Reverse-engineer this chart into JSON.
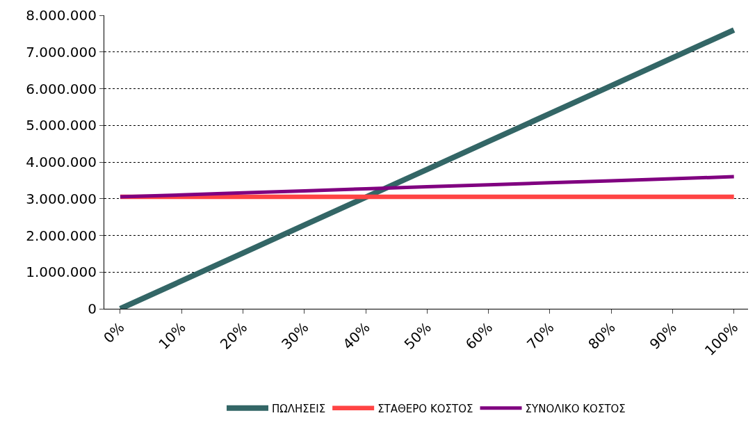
{
  "chart_data": {
    "type": "line",
    "categories": [
      "0%",
      "10%",
      "20%",
      "30%",
      "40%",
      "50%",
      "60%",
      "70%",
      "80%",
      "90%",
      "100%"
    ],
    "series": [
      {
        "name": "ΠΩΛΗΣΕΙΣ",
        "color": "#336666",
        "values": [
          0,
          760000,
          1520000,
          2280000,
          3040000,
          3800000,
          4560000,
          5320000,
          6080000,
          6840000,
          7600000
        ]
      },
      {
        "name": "ΣΤΑΘΕΡΟ ΚΟΣΤΟΣ",
        "color": "#ff4444",
        "values": [
          3050000,
          3050000,
          3050000,
          3050000,
          3050000,
          3050000,
          3050000,
          3050000,
          3050000,
          3050000,
          3050000
        ]
      },
      {
        "name": "ΣΥΝΟΛΙΚΟ ΚΟΣΤΟΣ",
        "color": "#800080",
        "values": [
          3050000,
          3105000,
          3160000,
          3215000,
          3270000,
          3325000,
          3380000,
          3435000,
          3490000,
          3545000,
          3600000
        ]
      }
    ],
    "ylim": [
      0,
      8000000
    ],
    "yticks": [
      {
        "value": 0,
        "label": "0"
      },
      {
        "value": 1000000,
        "label": "1.000.000"
      },
      {
        "value": 2000000,
        "label": "2.000.000"
      },
      {
        "value": 3000000,
        "label": "3.000.000"
      },
      {
        "value": 4000000,
        "label": "4.000.000"
      },
      {
        "value": 5000000,
        "label": "5.000.000"
      },
      {
        "value": 6000000,
        "label": "6.000.000"
      },
      {
        "value": 7000000,
        "label": "7.000.000"
      },
      {
        "value": 8000000,
        "label": "8.000.000"
      }
    ],
    "grid": "y",
    "legend": "bottom",
    "marker": "none",
    "line_style": "solid"
  }
}
